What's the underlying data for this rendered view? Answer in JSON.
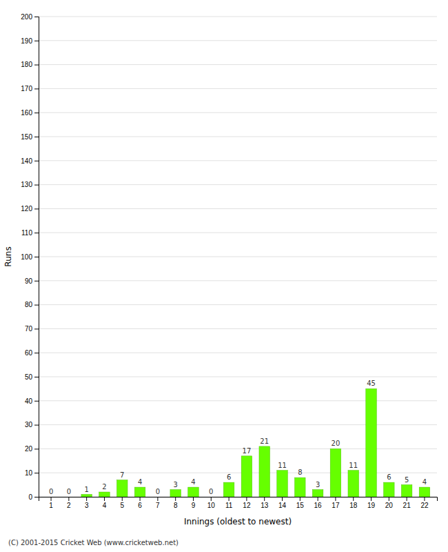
{
  "chart_data": {
    "type": "bar",
    "xlabel": "Innings (oldest to newest)",
    "ylabel": "Runs",
    "categories": [
      "1",
      "2",
      "3",
      "4",
      "5",
      "6",
      "7",
      "8",
      "9",
      "10",
      "11",
      "12",
      "13",
      "14",
      "15",
      "16",
      "17",
      "18",
      "19",
      "20",
      "21",
      "22"
    ],
    "values": [
      0,
      0,
      1,
      2,
      7,
      4,
      0,
      3,
      4,
      0,
      6,
      17,
      21,
      11,
      8,
      3,
      20,
      11,
      45,
      6,
      5,
      4
    ],
    "color": "#66ff00",
    "ylim": [
      0,
      200
    ],
    "yticks": [
      0,
      10,
      20,
      30,
      40,
      50,
      60,
      70,
      80,
      90,
      100,
      110,
      120,
      130,
      140,
      150,
      160,
      170,
      180,
      190,
      200
    ],
    "grid": true,
    "data_labels": true,
    "annotations": [
      "(C) 2001-2015 Cricket Web (www.cricketweb.net)"
    ]
  }
}
